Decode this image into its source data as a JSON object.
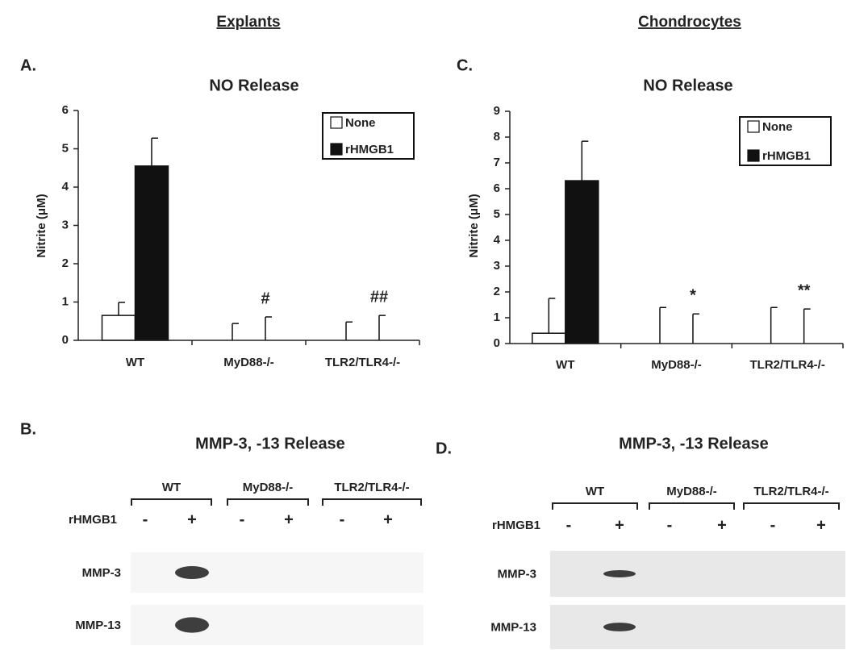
{
  "headings": [
    "Explants",
    "Chondrocytes"
  ],
  "chart_data": [
    {
      "type": "bar",
      "panel_label": "A.",
      "title": "NO Release",
      "y_label": "Nitrite (μM)",
      "categories": [
        "WT",
        "MyD88-/-",
        "TLR2/TLR4-/-"
      ],
      "series": [
        {
          "name": "None",
          "color": "#ffffff",
          "values": [
            0.65,
            0,
            0
          ],
          "errors": [
            0.34,
            0.44,
            0.48
          ]
        },
        {
          "name": "rHMGB1",
          "color": "#111111",
          "values": [
            4.55,
            0,
            0
          ],
          "errors": [
            0.73,
            0.61,
            0.65
          ]
        }
      ],
      "annotations": [
        null,
        "#",
        "##"
      ],
      "ylim": [
        0,
        6
      ],
      "yticks": [
        0,
        1,
        2,
        3,
        4,
        5,
        6
      ],
      "legend": "upper right"
    },
    {
      "type": "bar",
      "panel_label": "C.",
      "title": "NO Release",
      "y_label": "Nitrite (μM)",
      "categories": [
        "WT",
        "MyD88-/-",
        "TLR2/TLR4-/-"
      ],
      "series": [
        {
          "name": "None",
          "color": "#ffffff",
          "values": [
            0.4,
            0,
            0
          ],
          "errors": [
            1.35,
            1.4,
            1.4
          ]
        },
        {
          "name": "rHMGB1",
          "color": "#111111",
          "values": [
            6.31,
            0,
            0
          ],
          "errors": [
            1.53,
            1.15,
            1.34
          ]
        }
      ],
      "annotations": [
        null,
        "*",
        "**"
      ],
      "ylim": [
        0,
        9
      ],
      "yticks": [
        0,
        1,
        2,
        3,
        4,
        5,
        6,
        7,
        8,
        9
      ],
      "legend": "upper right"
    }
  ],
  "blots": [
    {
      "panel_label": "B.",
      "title": "MMP-3, -13 Release",
      "groups": [
        "WT",
        "MyD88-/-",
        "TLR2/TLR4-/-"
      ],
      "treatment_label": "rHMGB1",
      "treatments": [
        "-",
        "+",
        "-",
        "+",
        "-",
        "+"
      ],
      "rows": [
        "MMP-3",
        "MMP-13"
      ]
    },
    {
      "panel_label": "D.",
      "title": "MMP-3, -13 Release",
      "groups": [
        "WT",
        "MyD88-/-",
        "TLR2/TLR4-/-"
      ],
      "treatment_label": "rHMGB1",
      "treatments": [
        "-",
        "+",
        "-",
        "+",
        "-",
        "+"
      ],
      "rows": [
        "MMP-3",
        "MMP-13"
      ]
    }
  ]
}
